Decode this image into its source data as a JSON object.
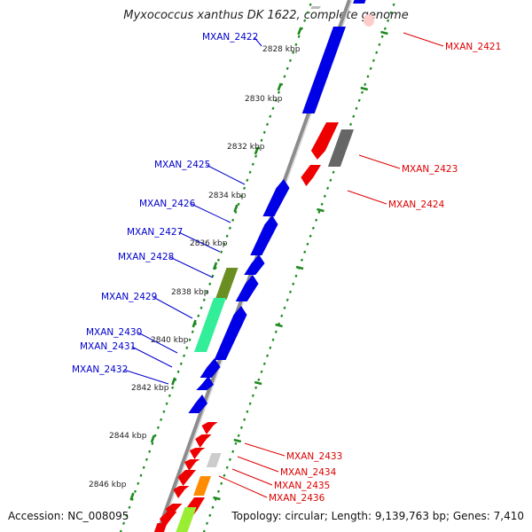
{
  "title": "Myxococcus xanthus DK 1622, complete genome",
  "footer": {
    "accession": "Accession: NC_008095",
    "summary": "Topology: circular; Length: 9,139,763 bp; Genes: 7,410"
  },
  "colors": {
    "backbone": "#8c8c8c",
    "tick": "#1e8a1e",
    "left_label": "#0000cc",
    "right_label": "#dd0000",
    "blue": "#0000e6",
    "red": "#ee0000",
    "olive": "#6b8e23",
    "mint": "#33ee99",
    "gray": "#666666",
    "lightgray": "#cccccc",
    "orange": "#ff8c00",
    "lime": "#99ee33",
    "pink": "#ffcccc"
  },
  "kbp_labels": [
    "2828 kbp",
    "2830 kbp",
    "2832 kbp",
    "2834 kbp",
    "2836 kbp",
    "2838 kbp",
    "2840 kbp",
    "2842 kbp",
    "2844 kbp",
    "2846 kbp"
  ],
  "left_genes": [
    "MXAN_2422",
    "MXAN_2425",
    "MXAN_2426",
    "MXAN_2427",
    "MXAN_2428",
    "MXAN_2429",
    "MXAN_2430",
    "MXAN_2431",
    "MXAN_2432"
  ],
  "right_genes": [
    "MXAN_2421",
    "MXAN_2423",
    "MXAN_2424",
    "MXAN_2433",
    "MXAN_2434",
    "MXAN_2435",
    "MXAN_2436"
  ]
}
